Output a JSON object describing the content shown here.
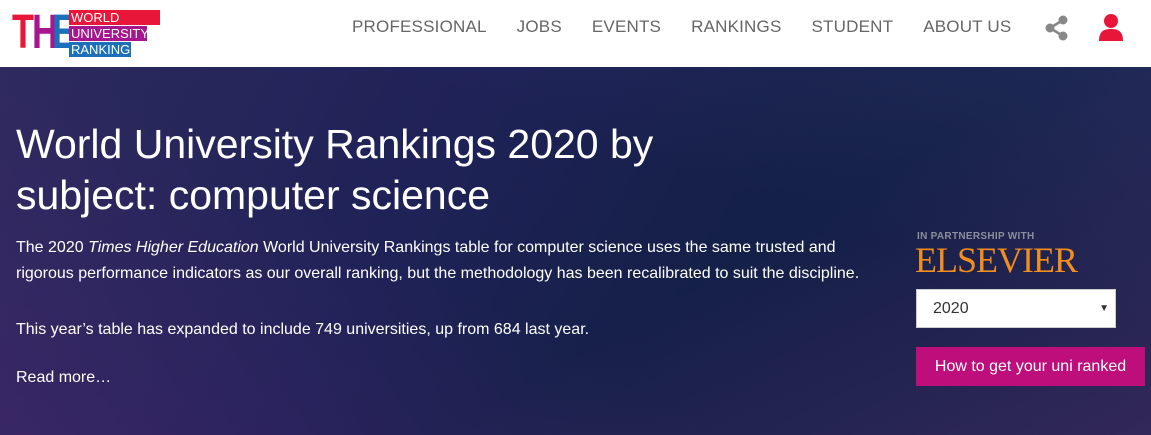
{
  "header": {
    "logo": {
      "mark": "THE",
      "lines": [
        "WORLD",
        "UNIVERSITY",
        "RANKINGS"
      ]
    },
    "nav": [
      "PROFESSIONAL",
      "JOBS",
      "EVENTS",
      "RANKINGS",
      "STUDENT",
      "ABOUT US"
    ],
    "icons": [
      "share-icon",
      "user-icon"
    ],
    "colors": {
      "red": "#e8173a",
      "purple": "#a5168f",
      "blue": "#1c6fb8",
      "user_icon": "#e8173a"
    }
  },
  "hero": {
    "title": "World University Rankings 2020 by subject: computer science",
    "desc_pre": "The 2020 ",
    "desc_em": "Times Higher Education",
    "desc_post": " World University Rankings table for computer science uses the same trusted and rigorous performance indicators as our overall ranking, but the methodology has been recalibrated to suit the discipline.",
    "paragraph2": "This year’s table has expanded to include 749 universities, up from 684 last year.",
    "read_more": "Read more…"
  },
  "sidebar": {
    "partner_label": "IN PARTNERSHIP WITH",
    "partner_name": "ELSEVIER",
    "year_select": "2020",
    "cta": "How to get your uni ranked",
    "cta_color": "#bd0e7c"
  }
}
